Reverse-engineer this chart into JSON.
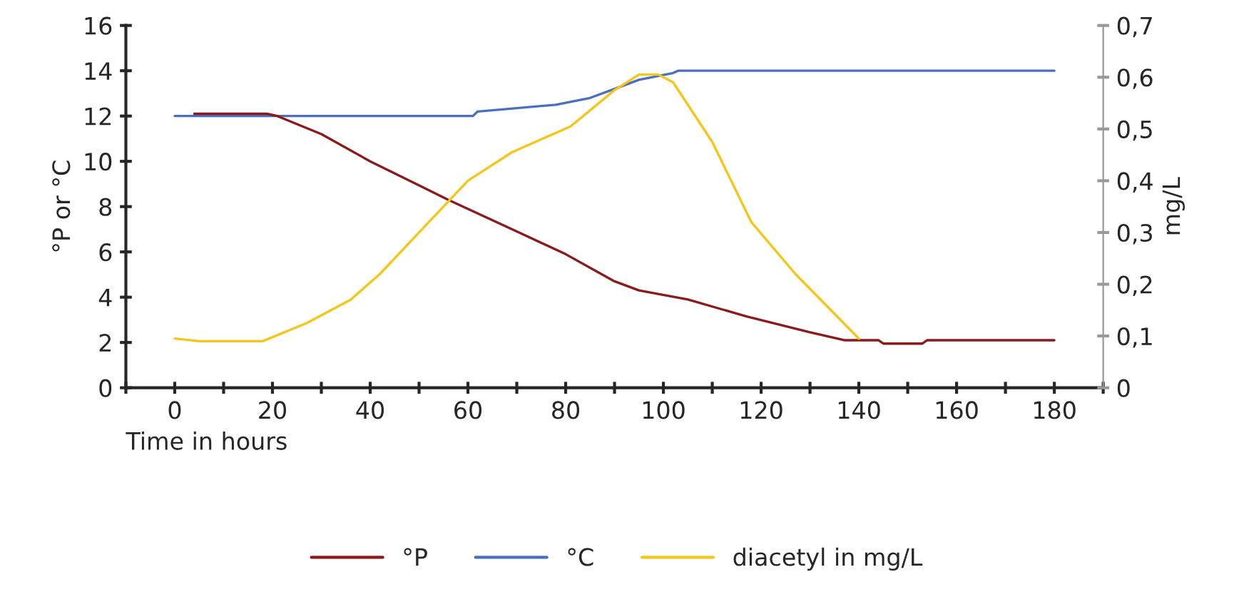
{
  "chart_data": {
    "type": "line",
    "xlabel": "Time in hours",
    "ylabel": "°P or °C",
    "y2label": "mg/L",
    "xlim": [
      -10,
      190
    ],
    "xticks": [
      {
        "value": -10,
        "label": null
      },
      {
        "value": 0,
        "label": "0"
      },
      {
        "value": 10,
        "label": null
      },
      {
        "value": 20,
        "label": "20"
      },
      {
        "value": 30,
        "label": null
      },
      {
        "value": 40,
        "label": "40"
      },
      {
        "value": 50,
        "label": null
      },
      {
        "value": 60,
        "label": "60"
      },
      {
        "value": 70,
        "label": null
      },
      {
        "value": 80,
        "label": "80"
      },
      {
        "value": 90,
        "label": null
      },
      {
        "value": 100,
        "label": "100"
      },
      {
        "value": 110,
        "label": null
      },
      {
        "value": 120,
        "label": "120"
      },
      {
        "value": 130,
        "label": null
      },
      {
        "value": 140,
        "label": "140"
      },
      {
        "value": 150,
        "label": null
      },
      {
        "value": 160,
        "label": "160"
      },
      {
        "value": 170,
        "label": null
      },
      {
        "value": 180,
        "label": "180"
      },
      {
        "value": 190,
        "label": null
      }
    ],
    "ylim": [
      0,
      16
    ],
    "yticks": [
      0,
      2,
      4,
      6,
      8,
      10,
      12,
      14,
      16
    ],
    "y2lim": [
      0,
      0.7
    ],
    "y2ticks": [
      0,
      {
        "value": 0.1,
        "label": "0,1"
      },
      {
        "value": 0.2,
        "label": "0,2"
      },
      {
        "value": 0.3,
        "label": "0,3"
      },
      {
        "value": 0.4,
        "label": "0,4"
      },
      {
        "value": 0.5,
        "label": "0,5"
      },
      {
        "value": 0.6,
        "label": "0,6"
      },
      {
        "value": 0.7,
        "label": "0,7"
      }
    ],
    "grid": false,
    "legend": "bottom",
    "marker": "none",
    "line_style": "solid",
    "series": [
      {
        "name": "°P",
        "color": "#8b1a1a",
        "x": [
          4,
          19,
          21,
          30,
          40,
          56,
          70,
          80,
          90,
          95,
          105,
          117,
          130,
          137,
          144,
          145,
          153,
          154,
          180
        ],
        "values": [
          12.1,
          12.1,
          12.0,
          11.2,
          10.0,
          8.3,
          6.9,
          5.9,
          4.7,
          4.3,
          3.9,
          3.15,
          2.45,
          2.1,
          2.1,
          1.95,
          1.95,
          2.1,
          2.1
        ]
      },
      {
        "name": "°C",
        "color": "#4a6fc0",
        "x": [
          0,
          61,
          62,
          70,
          78,
          85,
          90,
          95,
          102,
          103,
          180
        ],
        "values": [
          12,
          12,
          12.2,
          12.35,
          12.5,
          12.8,
          13.2,
          13.6,
          13.9,
          14,
          14
        ]
      },
      {
        "name": "diacetyl in mg/L",
        "color": "#f5c518",
        "axis": "y2",
        "x": [
          0,
          5,
          18,
          27,
          36,
          42,
          51,
          60,
          69,
          81,
          90,
          95,
          99,
          102,
          110,
          118,
          127,
          140
        ],
        "values": [
          0.095,
          0.09,
          0.09,
          0.125,
          0.17,
          0.22,
          0.31,
          0.4,
          0.455,
          0.505,
          0.575,
          0.605,
          0.605,
          0.59,
          0.475,
          0.32,
          0.22,
          0.095
        ]
      }
    ]
  }
}
